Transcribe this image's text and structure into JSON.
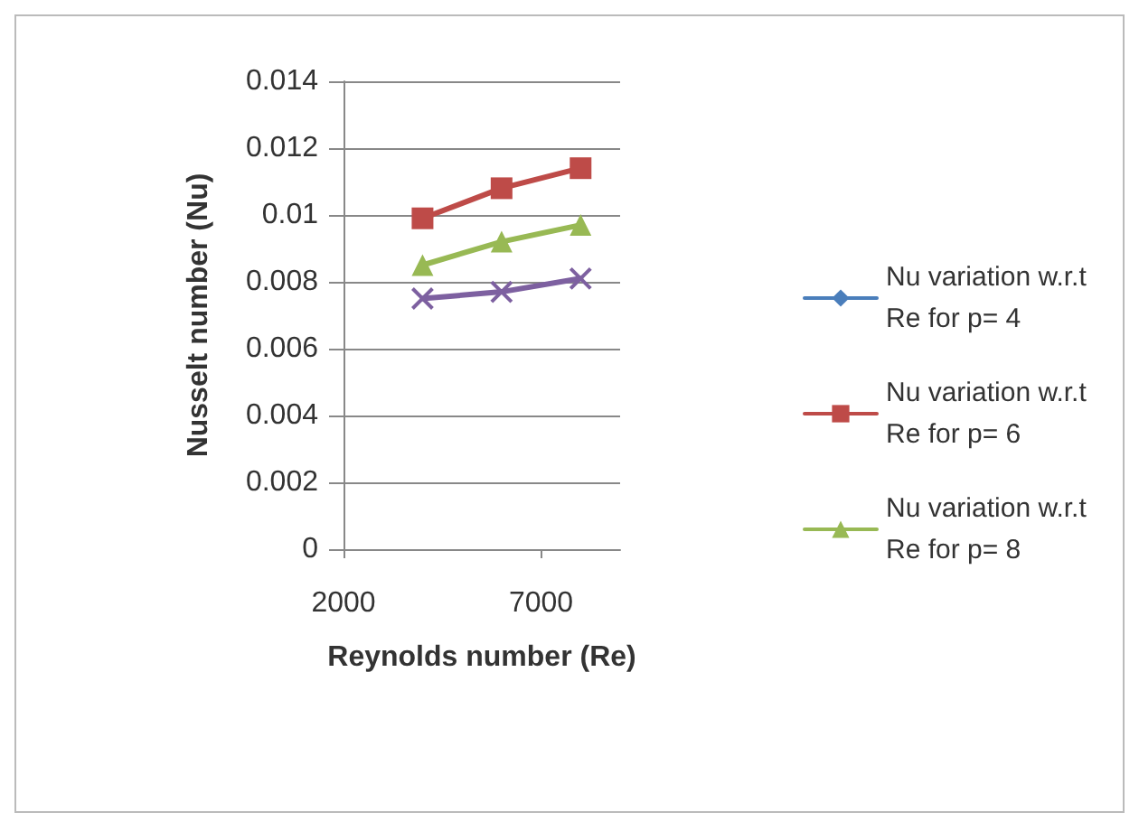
{
  "chart_data": {
    "type": "line",
    "xlabel": "Reynolds number (Re)",
    "ylabel": "Nusselt number (Nu)",
    "x": [
      4000,
      6000,
      8000
    ],
    "series": [
      {
        "name": "Nu variation w.r.t Re for p= 4",
        "color": "#4a7ebb",
        "marker": "diamond",
        "values": [
          null,
          null,
          null
        ]
      },
      {
        "name": "Nu variation w.r.t Re for p= 6",
        "color": "#be4b48",
        "marker": "square",
        "values": [
          0.0099,
          0.0108,
          0.0114
        ]
      },
      {
        "name": "Nu variation w.r.t Re for p= 8",
        "color": "#98b954",
        "marker": "triangle",
        "values": [
          0.0085,
          0.0092,
          0.0097
        ]
      },
      {
        "color": "#7d60a0",
        "marker": "cross",
        "values": [
          0.0075,
          0.0077,
          0.0081
        ]
      }
    ],
    "xlim": [
      2000,
      9000
    ],
    "xticks": [
      2000,
      7000
    ],
    "ylim": [
      0,
      0.014
    ],
    "yticks": [
      0,
      0.002,
      0.004,
      0.006,
      0.008,
      0.01,
      0.012,
      0.014
    ],
    "grid": "y",
    "legend": "right"
  }
}
